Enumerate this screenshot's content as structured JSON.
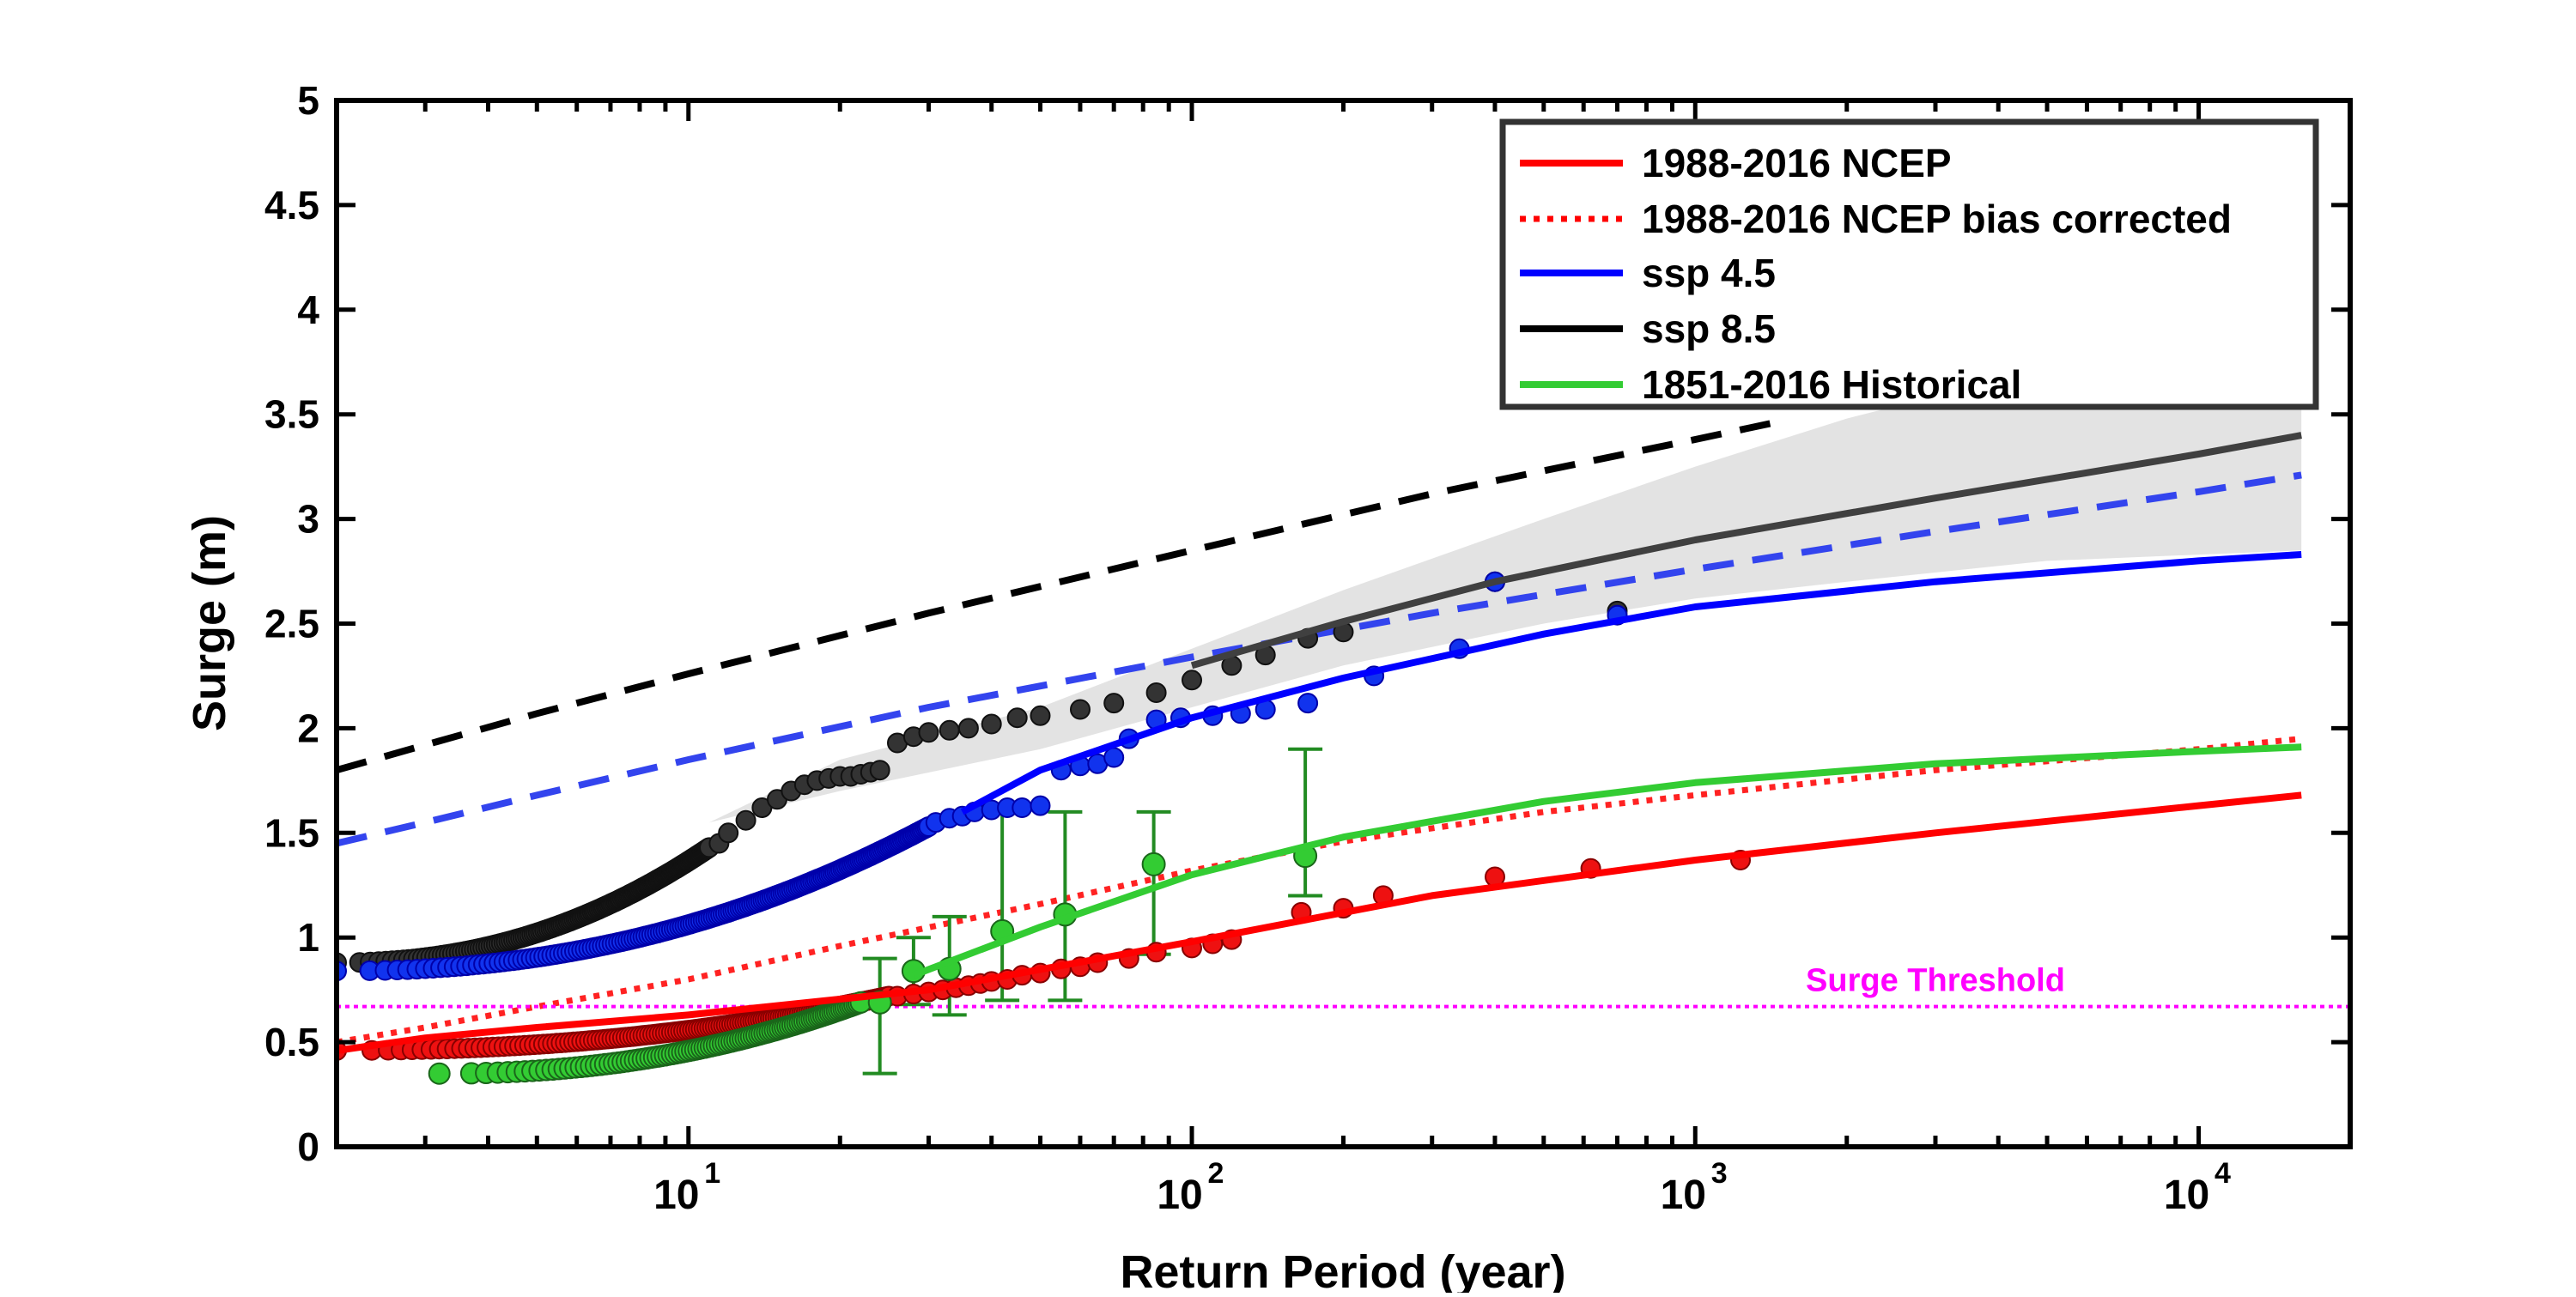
{
  "chart_data": {
    "type": "line",
    "xlabel": "Return Period (year)",
    "ylabel": "Surge (m)",
    "xscale": "log",
    "xlim": [
      2,
      20000
    ],
    "ylim": [
      0,
      5
    ],
    "grid": false,
    "legend_position": "top-right",
    "y_ticks": [
      {
        "value": 0,
        "label": "0"
      },
      {
        "value": 0.5,
        "label": "0.5"
      },
      {
        "value": 1,
        "label": "1"
      },
      {
        "value": 1.5,
        "label": "1.5"
      },
      {
        "value": 2,
        "label": "2"
      },
      {
        "value": 2.5,
        "label": "2.5"
      },
      {
        "value": 3,
        "label": "3"
      },
      {
        "value": 3.5,
        "label": "3.5"
      },
      {
        "value": 4,
        "label": "4"
      },
      {
        "value": 4.5,
        "label": "4.5"
      },
      {
        "value": 5,
        "label": "5"
      }
    ],
    "x_ticks": [
      {
        "value": 10,
        "base": "10",
        "exp": "1"
      },
      {
        "value": 100,
        "base": "10",
        "exp": "2"
      },
      {
        "value": 1000,
        "base": "10",
        "exp": "3"
      },
      {
        "value": 10000,
        "base": "10",
        "exp": "4"
      }
    ],
    "legend": [
      {
        "label": "1988-2016 NCEP",
        "color": "#ff0000",
        "style": "solid"
      },
      {
        "label": "1988-2016 NCEP bias corrected",
        "color": "#ff0000",
        "style": "dotted"
      },
      {
        "label": "ssp 4.5",
        "color": "#0000ff",
        "style": "solid"
      },
      {
        "label": "ssp 8.5",
        "color": "#000000",
        "style": "solid"
      },
      {
        "label": "1851-2016 Historical",
        "color": "#33cc33",
        "style": "solid"
      }
    ],
    "threshold": {
      "label": "Surge Threshold",
      "value": 0.67,
      "color": "#ff00ff"
    },
    "confidence_band": {
      "color": "#e3e3e3",
      "x": [
        11,
        20,
        50,
        100,
        200,
        500,
        1000,
        2000,
        5000,
        16000
      ],
      "lower": [
        1.55,
        1.7,
        1.9,
        2.1,
        2.3,
        2.5,
        2.62,
        2.7,
        2.8,
        2.85
      ],
      "upper": [
        1.55,
        1.85,
        2.1,
        2.38,
        2.66,
        3.0,
        3.25,
        3.48,
        3.72,
        3.98
      ]
    },
    "lines": [
      {
        "id": "ssp85-dashed",
        "color": "#000000",
        "style": "dashed",
        "x": [
          2,
          3,
          5,
          10,
          30,
          100,
          300,
          1000,
          1500
        ],
        "y": [
          1.8,
          1.92,
          2.07,
          2.26,
          2.55,
          2.85,
          3.12,
          3.38,
          3.47
        ]
      },
      {
        "id": "ssp45-dashed",
        "color": "#3344ee",
        "style": "dashed",
        "x": [
          2,
          3,
          5,
          10,
          30,
          100,
          300,
          1000,
          3000,
          10000,
          16000
        ],
        "y": [
          1.45,
          1.55,
          1.68,
          1.85,
          2.1,
          2.34,
          2.55,
          2.76,
          2.94,
          3.13,
          3.21
        ]
      },
      {
        "id": "ssp85-fit",
        "color": "#404040",
        "style": "solid",
        "x": [
          100,
          200,
          400,
          1000,
          3000,
          10000,
          16000
        ],
        "y": [
          2.3,
          2.51,
          2.7,
          2.9,
          3.1,
          3.31,
          3.4
        ]
      },
      {
        "id": "ssp45-fit",
        "color": "#0000ff",
        "style": "solid",
        "x": [
          35,
          50,
          100,
          200,
          500,
          1000,
          3000,
          10000,
          16000
        ],
        "y": [
          1.6,
          1.8,
          2.05,
          2.24,
          2.45,
          2.58,
          2.7,
          2.8,
          2.83
        ]
      },
      {
        "id": "historical-fit",
        "color": "#33cc33",
        "style": "solid",
        "x": [
          28,
          50,
          100,
          200,
          500,
          1000,
          3000,
          10000,
          16000
        ],
        "y": [
          0.82,
          1.05,
          1.3,
          1.48,
          1.65,
          1.74,
          1.83,
          1.89,
          1.91
        ]
      },
      {
        "id": "ncep-bias",
        "color": "#ff2222",
        "style": "dotted",
        "x": [
          2,
          3,
          5,
          10,
          20,
          50,
          100,
          200,
          500,
          1000,
          3000,
          10000,
          16000
        ],
        "y": [
          0.5,
          0.57,
          0.67,
          0.8,
          0.96,
          1.16,
          1.32,
          1.46,
          1.6,
          1.68,
          1.8,
          1.9,
          1.95
        ]
      },
      {
        "id": "ncep-fit",
        "color": "#ff0000",
        "style": "solid",
        "x": [
          2,
          3,
          5,
          10,
          30,
          100,
          300,
          1000,
          3000,
          10000,
          16000
        ],
        "y": [
          0.46,
          0.52,
          0.57,
          0.63,
          0.75,
          0.98,
          1.2,
          1.37,
          1.5,
          1.63,
          1.68
        ]
      }
    ],
    "scatter": [
      {
        "id": "ssp85-points",
        "fill": "#333333",
        "stroke": "#111111",
        "dense_x": [
          2,
          11
        ],
        "dense_y": [
          0.88,
          1.43
        ],
        "dense_count": 160,
        "x": [
          11.5,
          12,
          13,
          14,
          15,
          16,
          17,
          18,
          19,
          20,
          21,
          22,
          23,
          24,
          26,
          28,
          30,
          33,
          36,
          40,
          45,
          50,
          60,
          70,
          85,
          100,
          120,
          140,
          170,
          200,
          400,
          700
        ],
        "y": [
          1.45,
          1.5,
          1.56,
          1.62,
          1.66,
          1.7,
          1.73,
          1.75,
          1.76,
          1.77,
          1.77,
          1.78,
          1.79,
          1.8,
          1.93,
          1.96,
          1.98,
          1.99,
          2.0,
          2.02,
          2.05,
          2.06,
          2.09,
          2.12,
          2.17,
          2.23,
          2.3,
          2.35,
          2.43,
          2.46,
          2.7,
          2.56
        ]
      },
      {
        "id": "ssp45-points",
        "fill": "#1133ee",
        "stroke": "#0000aa",
        "dense_x": [
          2,
          30
        ],
        "dense_y": [
          0.84,
          1.53
        ],
        "dense_count": 190,
        "x": [
          31,
          33,
          35,
          37,
          40,
          43,
          46,
          50,
          55,
          60,
          65,
          70,
          75,
          85,
          95,
          110,
          125,
          140,
          170,
          230,
          340,
          400,
          700
        ],
        "y": [
          1.55,
          1.57,
          1.58,
          1.6,
          1.61,
          1.62,
          1.62,
          1.63,
          1.8,
          1.82,
          1.83,
          1.86,
          1.95,
          2.04,
          2.05,
          2.06,
          2.07,
          2.09,
          2.12,
          2.25,
          2.38,
          2.7,
          2.54
        ]
      },
      {
        "id": "ncep-points",
        "fill": "#ee1111",
        "stroke": "#880000",
        "dense_x": [
          2,
          25
        ],
        "dense_y": [
          0.46,
          0.72
        ],
        "dense_count": 150,
        "x": [
          26,
          28,
          30,
          32,
          34,
          36,
          38,
          40,
          43,
          46,
          50,
          55,
          60,
          65,
          75,
          85,
          100,
          110,
          120,
          165,
          200,
          240,
          400,
          620,
          1230
        ],
        "y": [
          0.72,
          0.73,
          0.74,
          0.75,
          0.76,
          0.77,
          0.78,
          0.79,
          0.8,
          0.82,
          0.83,
          0.85,
          0.86,
          0.88,
          0.9,
          0.93,
          0.95,
          0.97,
          0.99,
          1.12,
          1.14,
          1.2,
          1.29,
          1.33,
          1.37
        ]
      },
      {
        "id": "historical-points",
        "fill": "#33cc33",
        "stroke": "#1a661a",
        "dense_x": [
          3.2,
          22
        ],
        "dense_y": [
          0.35,
          0.69
        ],
        "dense_count": 110,
        "x": [
          24,
          28,
          33,
          42,
          56,
          84,
          168
        ],
        "y": [
          0.69,
          0.84,
          0.85,
          1.03,
          1.11,
          1.35,
          1.39
        ]
      }
    ],
    "error_bars": {
      "color": "#228b22",
      "items": [
        {
          "x": 24,
          "low": 0.35,
          "high": 0.9
        },
        {
          "x": 28,
          "low": 0.68,
          "high": 1.0
        },
        {
          "x": 33,
          "low": 0.63,
          "high": 1.1
        },
        {
          "x": 42,
          "low": 0.7,
          "high": 1.6
        },
        {
          "x": 56,
          "low": 0.7,
          "high": 1.6
        },
        {
          "x": 84,
          "low": 0.92,
          "high": 1.6
        },
        {
          "x": 168,
          "low": 1.2,
          "high": 1.9
        }
      ]
    }
  }
}
